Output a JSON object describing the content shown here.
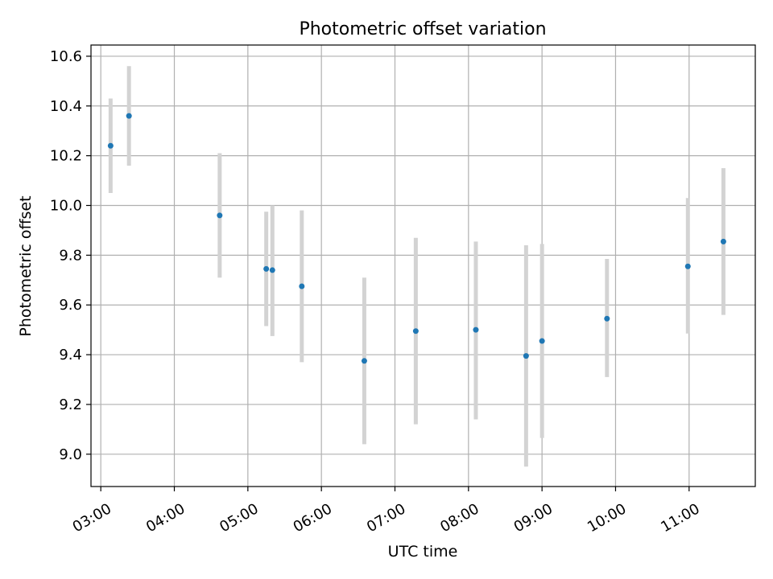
{
  "chart_data": {
    "type": "scatter",
    "title": "Photometric offset variation",
    "xlabel": "UTC time",
    "ylabel": "Photometric offset",
    "xlim": [
      "02:52",
      "11:54"
    ],
    "ylim": [
      8.87,
      10.645
    ],
    "grid": true,
    "x_ticks": [
      "03:00",
      "04:00",
      "05:00",
      "06:00",
      "07:00",
      "08:00",
      "09:00",
      "10:00",
      "11:00"
    ],
    "y_ticks": [
      "9.0",
      "9.2",
      "9.4",
      "9.6",
      "9.8",
      "10.0",
      "10.2",
      "10.4",
      "10.6"
    ],
    "series": [
      {
        "color": "#1f77b4",
        "error_color": "#d3d3d3",
        "points": [
          {
            "x": "03:08",
            "y": 10.24,
            "ylow": 10.05,
            "yhigh": 10.43
          },
          {
            "x": "03:23",
            "y": 10.36,
            "ylow": 10.16,
            "yhigh": 10.56
          },
          {
            "x": "04:37",
            "y": 9.96,
            "ylow": 9.71,
            "yhigh": 10.21
          },
          {
            "x": "05:15",
            "y": 9.745,
            "ylow": 9.515,
            "yhigh": 9.975
          },
          {
            "x": "05:20",
            "y": 9.74,
            "ylow": 9.475,
            "yhigh": 10.0
          },
          {
            "x": "05:44",
            "y": 9.675,
            "ylow": 9.37,
            "yhigh": 9.98
          },
          {
            "x": "06:35",
            "y": 9.375,
            "ylow": 9.04,
            "yhigh": 9.71
          },
          {
            "x": "07:17",
            "y": 9.495,
            "ylow": 9.12,
            "yhigh": 9.87
          },
          {
            "x": "08:06",
            "y": 9.5,
            "ylow": 9.14,
            "yhigh": 9.855
          },
          {
            "x": "08:47",
            "y": 9.395,
            "ylow": 8.95,
            "yhigh": 9.84
          },
          {
            "x": "09:00",
            "y": 9.455,
            "ylow": 9.065,
            "yhigh": 9.845
          },
          {
            "x": "09:53",
            "y": 9.545,
            "ylow": 9.31,
            "yhigh": 9.785
          },
          {
            "x": "10:59",
            "y": 9.755,
            "ylow": 9.485,
            "yhigh": 10.03
          },
          {
            "x": "11:28",
            "y": 9.855,
            "ylow": 9.56,
            "yhigh": 10.15
          }
        ]
      }
    ]
  }
}
